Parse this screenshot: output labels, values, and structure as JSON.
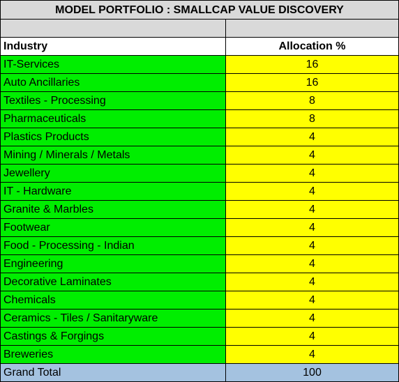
{
  "title": "MODEL PORTFOLIO : SMALLCAP VALUE DISCOVERY",
  "columns": {
    "industry": "Industry",
    "allocation": "Allocation %"
  },
  "rows": [
    {
      "industry": "IT-Services",
      "allocation": "16"
    },
    {
      "industry": "Auto Ancillaries",
      "allocation": "16"
    },
    {
      "industry": "Textiles - Processing",
      "allocation": "8"
    },
    {
      "industry": "Pharmaceuticals",
      "allocation": "8"
    },
    {
      "industry": "Plastics Products",
      "allocation": "4"
    },
    {
      "industry": "Mining / Minerals / Metals",
      "allocation": "4"
    },
    {
      "industry": "Jewellery",
      "allocation": "4"
    },
    {
      "industry": "IT - Hardware",
      "allocation": "4"
    },
    {
      "industry": "Granite & Marbles",
      "allocation": "4"
    },
    {
      "industry": "Footwear",
      "allocation": "4"
    },
    {
      "industry": "Food - Processing - Indian",
      "allocation": "4"
    },
    {
      "industry": "Engineering",
      "allocation": "4"
    },
    {
      "industry": "Decorative Laminates",
      "allocation": "4"
    },
    {
      "industry": "Chemicals",
      "allocation": "4"
    },
    {
      "industry": "Ceramics - Tiles / Sanitaryware",
      "allocation": "4"
    },
    {
      "industry": "Castings & Forgings",
      "allocation": "4"
    },
    {
      "industry": "Breweries",
      "allocation": "4"
    }
  ],
  "total": {
    "label": "Grand Total",
    "value": "100"
  },
  "colors": {
    "title_bg": "#d9d9d9",
    "industry_bg": "#00ee00",
    "allocation_bg": "#ffff00",
    "total_bg": "#a4c2e0"
  }
}
